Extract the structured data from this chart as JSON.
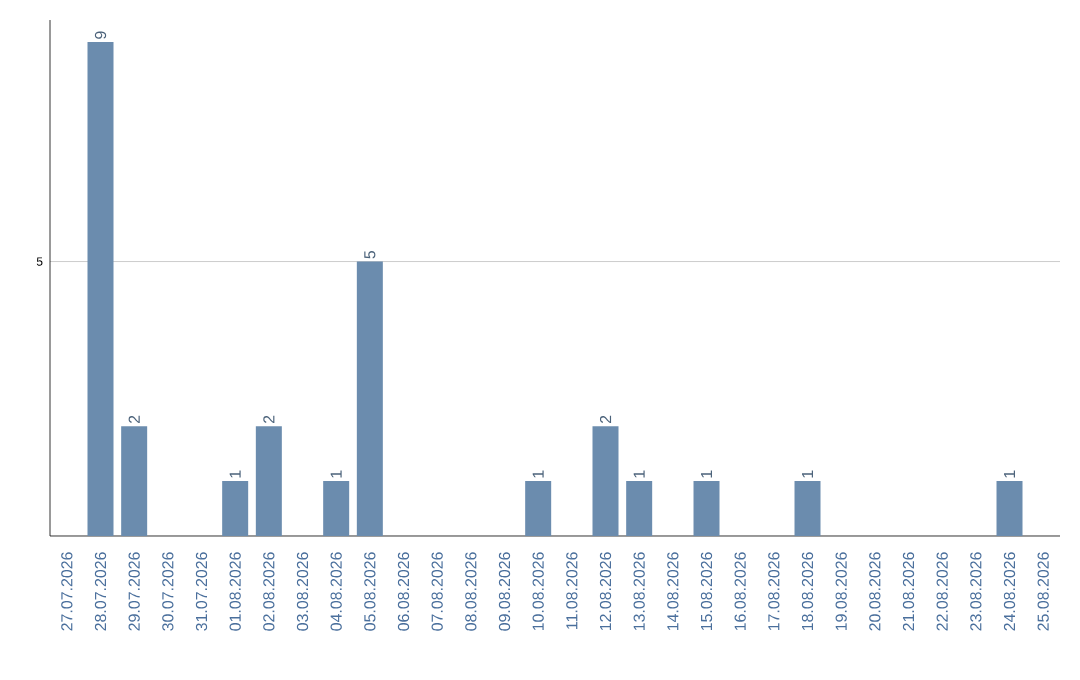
{
  "chart_data": {
    "type": "bar",
    "categories": [
      "27.07.2026",
      "28.07.2026",
      "29.07.2026",
      "30.07.2026",
      "31.07.2026",
      "01.08.2026",
      "02.08.2026",
      "03.08.2026",
      "04.08.2026",
      "05.08.2026",
      "06.08.2026",
      "07.08.2026",
      "08.08.2026",
      "09.08.2026",
      "10.08.2026",
      "11.08.2026",
      "12.08.2026",
      "13.08.2026",
      "14.08.2026",
      "15.08.2026",
      "16.08.2026",
      "17.08.2026",
      "18.08.2026",
      "19.08.2026",
      "20.08.2026",
      "21.08.2026",
      "22.08.2026",
      "23.08.2026",
      "24.08.2026",
      "25.08.2026"
    ],
    "values": [
      0,
      9,
      2,
      0,
      0,
      1,
      2,
      0,
      1,
      5,
      0,
      0,
      0,
      0,
      1,
      0,
      2,
      1,
      0,
      1,
      0,
      0,
      1,
      0,
      0,
      0,
      0,
      0,
      1,
      0
    ],
    "value_labels": [
      null,
      "9",
      "2",
      null,
      null,
      "1",
      "2",
      null,
      "1",
      "5",
      null,
      null,
      null,
      null,
      "1",
      null,
      "2",
      "1",
      null,
      "1",
      null,
      null,
      "1",
      null,
      null,
      null,
      null,
      null,
      "1",
      null
    ],
    "color": "#6b8cae",
    "ylim": [
      0,
      9.4
    ],
    "yticks": [
      5
    ],
    "grid": "y"
  }
}
